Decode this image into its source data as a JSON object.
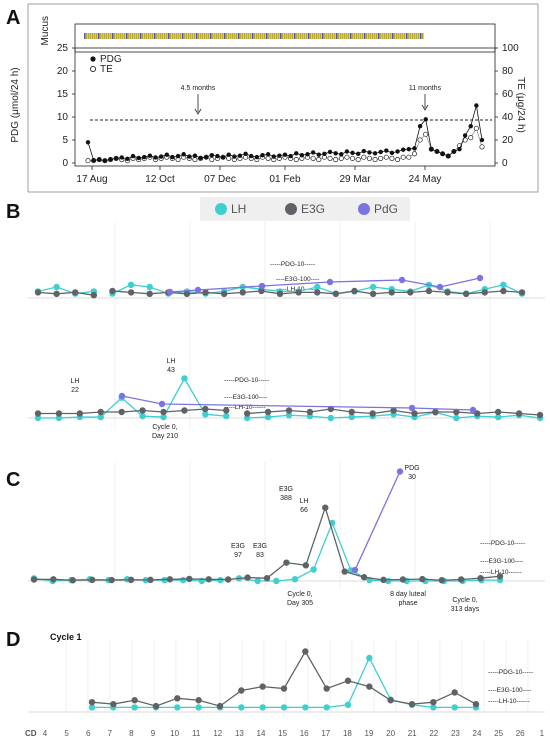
{
  "panelA": {
    "label": "A",
    "mucus_label": "Mucus",
    "left_axis_label": "PDG\n(μmol/24 h)",
    "right_axis_label": "TE\n(μg/24 h)",
    "left_ticks": [
      "0",
      "5",
      "10",
      "15",
      "20",
      "25"
    ],
    "right_ticks": [
      "0",
      "20",
      "40",
      "60",
      "80",
      "100"
    ],
    "x_ticks": [
      "17 Aug",
      "12 Oct",
      "07 Dec",
      "01 Feb",
      "29 Mar",
      "24 May"
    ],
    "legend": [
      "PDG",
      "TE"
    ],
    "annotations": [
      "4.5 months",
      "11 months"
    ]
  },
  "panelB": {
    "label": "B",
    "legend": [
      {
        "name": "LH",
        "color": "#3ecfd0"
      },
      {
        "name": "E3G",
        "color": "#5f6368"
      },
      {
        "name": "PdG",
        "color": "#7b73e0"
      }
    ]
  },
  "panelC": {
    "label": "C"
  },
  "panelD": {
    "label": "D",
    "title": "Cycle 1",
    "cd_label": "CD",
    "cd_ticks": [
      "4",
      "5",
      "6",
      "7",
      "8",
      "9",
      "10",
      "11",
      "12",
      "13",
      "14",
      "15",
      "16",
      "17",
      "18",
      "19",
      "20",
      "21",
      "22",
      "23",
      "24",
      "25",
      "26",
      "1"
    ]
  },
  "thresholds": {
    "pdg": "-----PDG-10-----",
    "e3g": "----E3G-100----",
    "lh": "-----LH-10------"
  },
  "chart_data": [
    {
      "panel": "A",
      "type": "scatter",
      "x_ticks": [
        "17 Aug",
        "12 Oct",
        "07 Dec",
        "01 Feb",
        "29 Mar",
        "24 May"
      ],
      "ylabel": "PDG (μmol/24 h)",
      "ylim": [
        0,
        25
      ],
      "y2label": "TE (μg/24 h)",
      "y2lim": [
        0,
        100
      ],
      "threshold_pdg": 9,
      "series": [
        {
          "name": "PDG",
          "values": [
            4.5,
            0.6,
            0.7,
            0.5,
            0.8,
            1.0,
            1.2,
            0.9,
            1.5,
            1.1,
            1.3,
            1.6,
            1.2,
            1.4,
            1.8,
            1.3,
            1.5,
            1.9,
            1.4,
            1.6,
            1.1,
            1.3,
            1.7,
            1.5,
            1.2,
            1.8,
            1.4,
            1.6,
            2.0,
            1.5,
            1.3,
            1.7,
            1.9,
            1.4,
            1.6,
            1.8,
            1.5,
            2.1,
            1.7,
            1.9,
            2.3,
            1.8,
            2.0,
            2.4,
            2.1,
            1.9,
            2.5,
            2.2,
            2.0,
            2.6,
            2.3,
            2.1,
            2.4,
            2.7,
            2.2,
            2.5,
            2.9,
            3.0,
            3.2,
            8.0,
            9.5,
            3.0,
            2.5,
            2.0,
            1.5,
            2.5,
            3.0,
            6.0,
            8.0,
            12.5,
            5.0
          ]
        },
        {
          "name": "TE",
          "values": [
            2,
            2,
            3,
            2,
            3,
            4,
            3,
            2,
            4,
            3,
            4,
            5,
            3,
            4,
            5,
            4,
            3,
            5,
            4,
            3,
            4,
            5,
            3,
            4,
            5,
            4,
            3,
            4,
            5,
            4,
            3,
            5,
            4,
            3,
            4,
            5,
            4,
            3,
            4,
            5,
            4,
            3,
            5,
            4,
            3,
            4,
            5,
            4,
            3,
            5,
            4,
            3,
            4,
            5,
            4,
            3,
            5,
            5,
            8,
            20,
            25,
            12,
            10,
            8,
            6,
            10,
            15,
            20,
            22,
            30,
            14
          ]
        }
      ],
      "annotations": [
        "4.5 months",
        "11 months"
      ]
    },
    {
      "panel": "B-upper",
      "type": "line",
      "series": [
        {
          "name": "LH",
          "values": [
            3,
            5,
            2,
            3,
            2,
            6,
            5,
            2,
            3,
            2,
            3,
            5,
            4,
            3,
            3,
            5,
            2,
            3,
            5,
            4,
            3,
            6,
            3,
            2,
            4,
            6,
            2
          ]
        },
        {
          "name": "E3G",
          "values": [
            4,
            3,
            4,
            2,
            5,
            4,
            3,
            4,
            3,
            4,
            3,
            4,
            5,
            3,
            4,
            4,
            3,
            5,
            3,
            4,
            4,
            5,
            4,
            3,
            4,
            5,
            4
          ]
        },
        {
          "name": "PdG",
          "values": [
            6,
            8,
            12,
            16,
            18,
            11,
            20
          ]
        }
      ],
      "thresholds": [
        "PDG-10",
        "E3G-100",
        "LH-10"
      ]
    },
    {
      "panel": "B-lower",
      "type": "line",
      "series": [
        {
          "name": "LH",
          "values": [
            0,
            0,
            1,
            1,
            22,
            2,
            1,
            43,
            4,
            2,
            0,
            1,
            3,
            2,
            0,
            1,
            2,
            4,
            1,
            6,
            0,
            2,
            1,
            3,
            0
          ]
        },
        {
          "name": "E3G",
          "values": [
            3,
            3,
            3,
            4,
            4,
            5,
            4,
            5,
            6,
            5,
            3,
            4,
            5,
            4,
            6,
            4,
            3,
            5,
            3,
            4,
            4,
            3,
            4,
            3,
            2
          ]
        },
        {
          "name": "PdG",
          "values": [
            22,
            14,
            10,
            8
          ]
        }
      ],
      "annotations": [
        "LH 22",
        "LH 43",
        "Cycle 0, Day 210"
      ],
      "thresholds": [
        "PDG-10",
        "E3G-100",
        "LH-10"
      ]
    },
    {
      "panel": "C",
      "type": "line",
      "series": [
        {
          "name": "LH",
          "values": [
            3,
            0,
            1,
            2,
            1,
            2,
            1,
            1,
            1,
            0,
            1,
            3,
            0,
            0,
            2,
            13,
            66,
            12,
            1,
            0,
            0,
            0,
            0,
            0,
            1,
            1
          ]
        },
        {
          "name": "E3G",
          "values": [
            8,
            9,
            4,
            6,
            5,
            6,
            6,
            9,
            11,
            9,
            8,
            18,
            15,
            97,
            83,
            388,
            50,
            20,
            6,
            8,
            10,
            4,
            8,
            15,
            25
          ]
        },
        {
          "name": "PdG",
          "values": [
            3,
            30
          ]
        }
      ],
      "annotations": [
        "E3G 97",
        "E3G 83",
        "E3G 388",
        "LH 66",
        "PDG 30",
        "Cycle 0, Day 305",
        "8 day luteal phase",
        "Cycle 0, 313 days"
      ],
      "thresholds": [
        "PDG-10",
        "E3G-100",
        "LH-10"
      ]
    },
    {
      "panel": "D",
      "type": "line",
      "title": "Cycle 1",
      "categories": [
        "6",
        "7",
        "8",
        "9",
        "10",
        "11",
        "12",
        "13",
        "14",
        "15",
        "16",
        "17",
        "18",
        "19",
        "20",
        "21",
        "22",
        "23",
        "24"
      ],
      "series": [
        {
          "name": "LH",
          "values": [
            1,
            1,
            1,
            1,
            1,
            1,
            1,
            1,
            1,
            1,
            1,
            1,
            2,
            20,
            4,
            2,
            1,
            1,
            1
          ]
        },
        {
          "name": "E3G",
          "values": [
            4,
            3,
            5,
            2,
            6,
            5,
            2,
            10,
            12,
            11,
            30,
            11,
            15,
            12,
            5,
            3,
            4,
            9,
            3
          ]
        }
      ],
      "thresholds": [
        "PDG-10",
        "E3G-100",
        "LH-10"
      ]
    }
  ]
}
